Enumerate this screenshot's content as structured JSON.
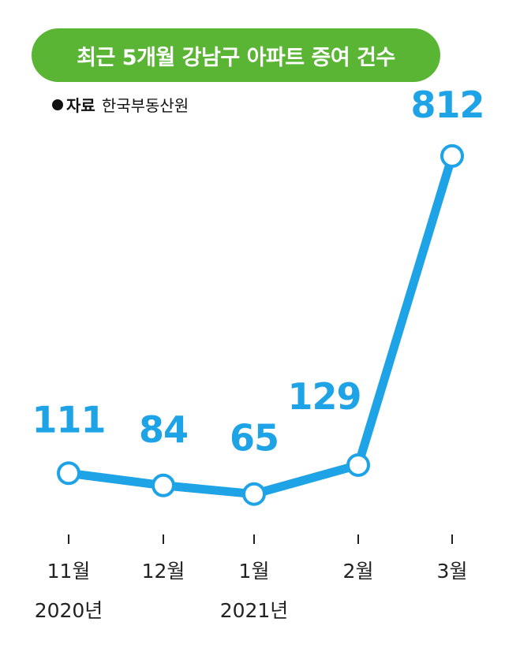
{
  "title": "최근 5개월 강남구 아파트 증여 건수",
  "source": {
    "label": "자료",
    "text": "한국부동산원"
  },
  "colors": {
    "accent": "#1ea3e6",
    "title_bg": "#5ab534",
    "text": "#222222"
  },
  "chart_data": {
    "type": "line",
    "title": "최근 5개월 강남구 아파트 증여 건수",
    "categories": [
      "11월",
      "12월",
      "1월",
      "2월",
      "3월"
    ],
    "year_labels": [
      "2020년",
      "",
      "2021년",
      "",
      ""
    ],
    "series": [
      {
        "values": [
          111,
          84,
          65,
          129,
          812
        ]
      }
    ],
    "data_labels": [
      "111",
      "84",
      "65",
      "129",
      "812"
    ],
    "xlabel": "",
    "ylabel": "",
    "ylim": [
      0,
      850
    ],
    "grid": false,
    "legend": "none"
  }
}
